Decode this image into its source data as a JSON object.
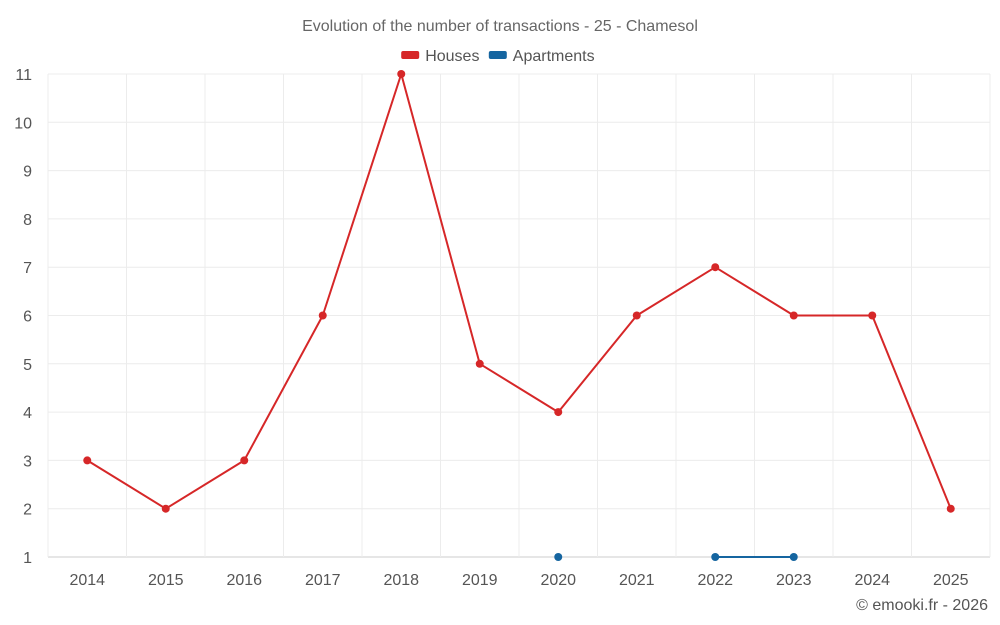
{
  "chart_data": {
    "type": "line",
    "title": "Evolution of the number of transactions - 25 - Chamesol",
    "categories": [
      "2014",
      "2015",
      "2016",
      "2017",
      "2018",
      "2019",
      "2020",
      "2021",
      "2022",
      "2023",
      "2024",
      "2025"
    ],
    "series": [
      {
        "name": "Houses",
        "color": "#d62728",
        "values": [
          3,
          2,
          3,
          6,
          11,
          5,
          4,
          6,
          7,
          6,
          6,
          2
        ]
      },
      {
        "name": "Apartments",
        "color": "#1565a0",
        "values": [
          null,
          null,
          null,
          null,
          null,
          null,
          1,
          null,
          1,
          1,
          null,
          null
        ]
      }
    ],
    "yticks": [
      "1",
      "2",
      "3",
      "4",
      "5",
      "6",
      "7",
      "8",
      "9",
      "10",
      "11"
    ],
    "ylim": [
      1,
      11
    ],
    "xlabel": "",
    "ylabel": "",
    "grid": true,
    "legend": "top-center"
  },
  "credit": "© emooki.fr - 2026"
}
